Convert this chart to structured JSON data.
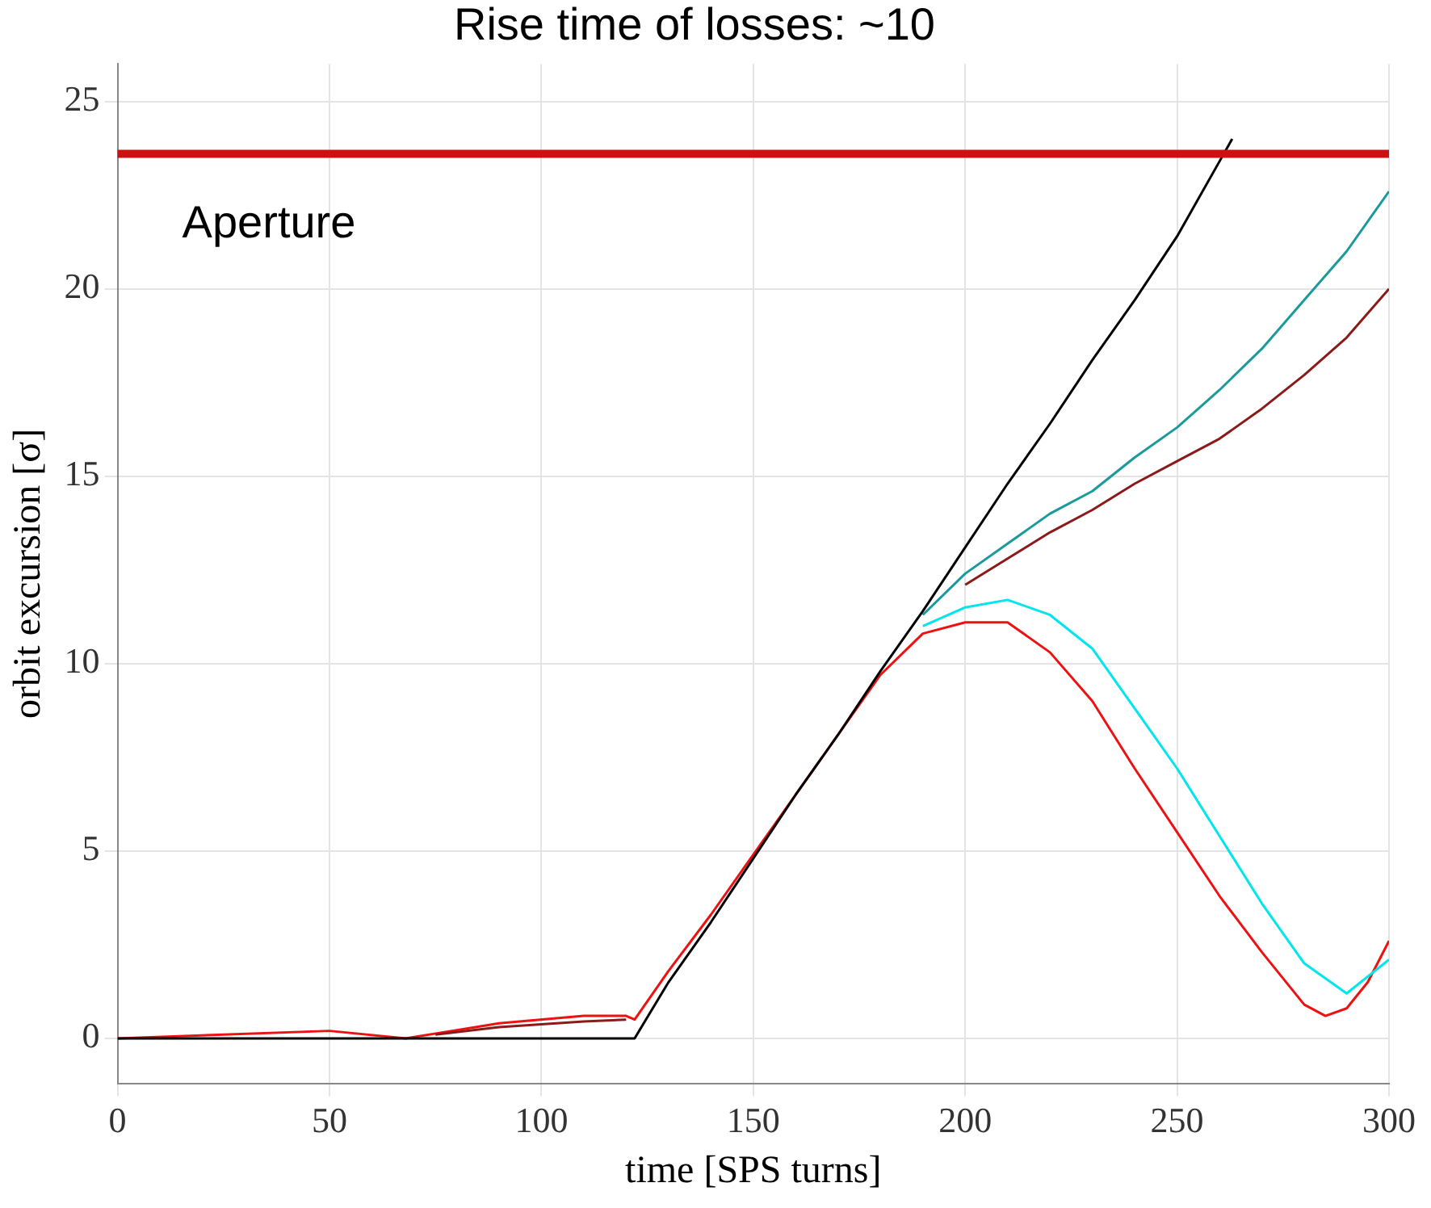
{
  "chart_data": {
    "type": "line",
    "title": "Rise time of losses: ~10",
    "xlabel": "time [SPS turns]",
    "ylabel": "orbit excursion [σ]",
    "xlim": [
      0,
      300
    ],
    "xticks": [
      0,
      50,
      100,
      150,
      200,
      250,
      300
    ],
    "ylim": [
      -1.2,
      26
    ],
    "yticks": [
      0,
      5,
      10,
      15,
      20,
      25
    ],
    "grid": true,
    "legend": false,
    "marker": "none",
    "line_style": "solid",
    "ref_lines": [
      {
        "axis": "y",
        "value": 23.6,
        "label": "Aperture",
        "color": "#cc1111"
      }
    ],
    "series": [
      {
        "color": "#000000",
        "x": [
          0,
          120,
          122,
          130,
          140,
          150,
          160,
          170,
          180,
          190,
          200,
          210,
          220,
          230,
          240,
          250,
          260,
          263
        ],
        "values": [
          0,
          0,
          0,
          1.5,
          3.1,
          4.8,
          6.5,
          8.1,
          9.8,
          11.4,
          13.1,
          14.8,
          16.4,
          18.1,
          19.7,
          21.4,
          23.4,
          24
        ]
      },
      {
        "color": "#1a9a9a",
        "x": [
          190,
          200,
          210,
          220,
          230,
          240,
          250,
          260,
          270,
          280,
          290,
          300
        ],
        "values": [
          11.3,
          12.4,
          13.2,
          14,
          14.6,
          15.5,
          16.3,
          17.3,
          18.4,
          19.7,
          21,
          22.6
        ]
      },
      {
        "color": "#8b1a1a",
        "x": [
          75,
          90,
          110,
          120,
          190,
          200,
          210,
          220,
          230,
          240,
          250,
          260,
          270,
          280,
          290,
          300
        ],
        "values": [
          0.1,
          0.3,
          0.45,
          0.5,
          null,
          12.1,
          12.8,
          13.5,
          14.1,
          14.8,
          15.4,
          16,
          16.8,
          17.7,
          18.7,
          20
        ]
      },
      {
        "color": "#00e5ee",
        "x": [
          190,
          200,
          210,
          220,
          230,
          240,
          250,
          260,
          270,
          280,
          290,
          300
        ],
        "values": [
          11,
          11.5,
          11.7,
          11.3,
          10.4,
          8.8,
          7.2,
          5.4,
          3.6,
          2,
          1.2,
          2.1
        ]
      },
      {
        "color": "#ee1111",
        "x": [
          0,
          25,
          50,
          68,
          90,
          110,
          120,
          122,
          130,
          140,
          150,
          160,
          170,
          180,
          190,
          200,
          210,
          220,
          230,
          240,
          250,
          260,
          270,
          280,
          285,
          290,
          295,
          300
        ],
        "values": [
          0,
          0.1,
          0.2,
          0,
          0.4,
          0.6,
          0.6,
          0.5,
          1.8,
          3.3,
          4.9,
          6.5,
          8.1,
          9.7,
          10.8,
          11.1,
          11.1,
          10.3,
          9,
          7.2,
          5.5,
          3.8,
          2.3,
          0.9,
          0.6,
          0.8,
          1.5,
          2.6
        ]
      }
    ]
  }
}
